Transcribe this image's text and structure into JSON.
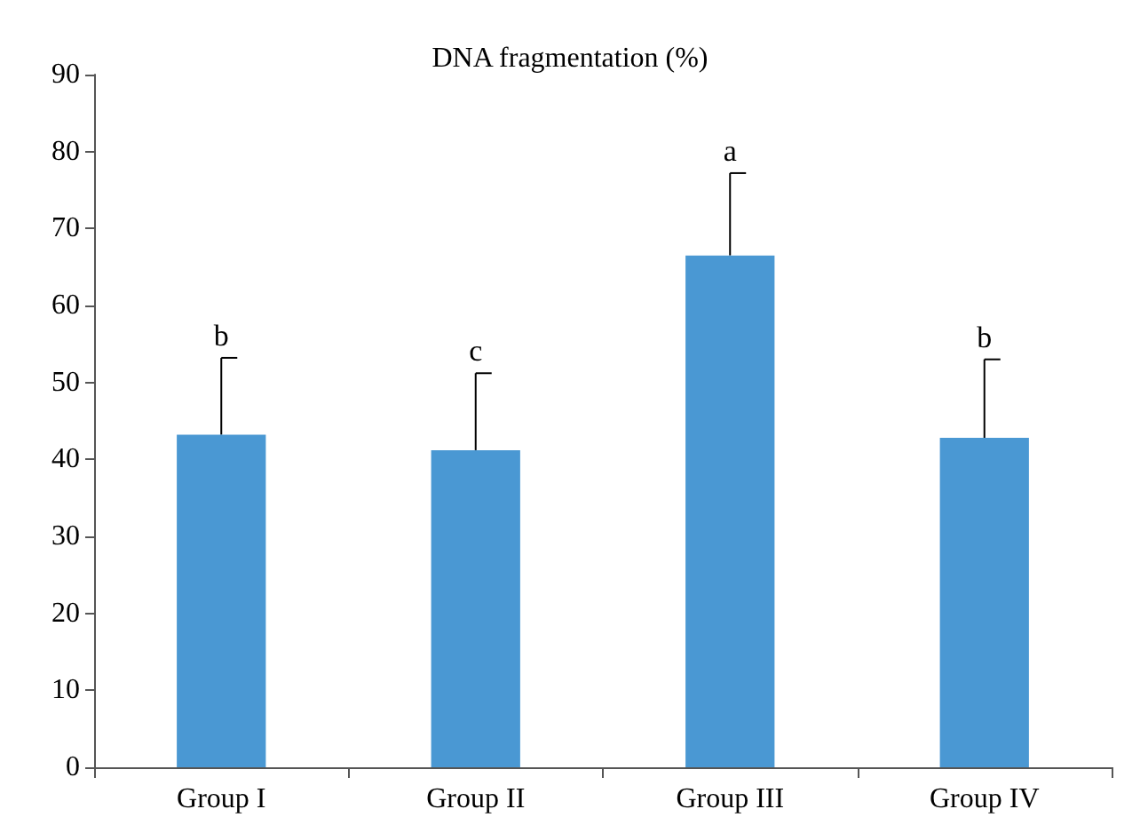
{
  "chart_data": {
    "type": "bar",
    "title": "DNA fragmentation (%)",
    "categories": [
      "Group I",
      "Group II",
      "Group III",
      "Group IV"
    ],
    "values": [
      43.2,
      41.2,
      66.5,
      42.8
    ],
    "errors": [
      [
        43.2,
        53.2
      ],
      [
        41.2,
        51.2
      ],
      [
        66.5,
        77.2
      ],
      [
        42.8,
        53.0
      ]
    ],
    "color": "#4a98d3",
    "ylim": [
      0,
      90
    ],
    "yticks": [
      0,
      10,
      20,
      30,
      40,
      50,
      60,
      70,
      80,
      90
    ],
    "grid": false,
    "annotations": [
      {
        "text": "b",
        "x": "Group I",
        "y": 53.2
      },
      {
        "text": "c",
        "x": "Group II",
        "y": 51.2
      },
      {
        "text": "a",
        "x": "Group III",
        "y": 77.2
      },
      {
        "text": "b",
        "x": "Group IV",
        "y": 53.0
      }
    ]
  }
}
